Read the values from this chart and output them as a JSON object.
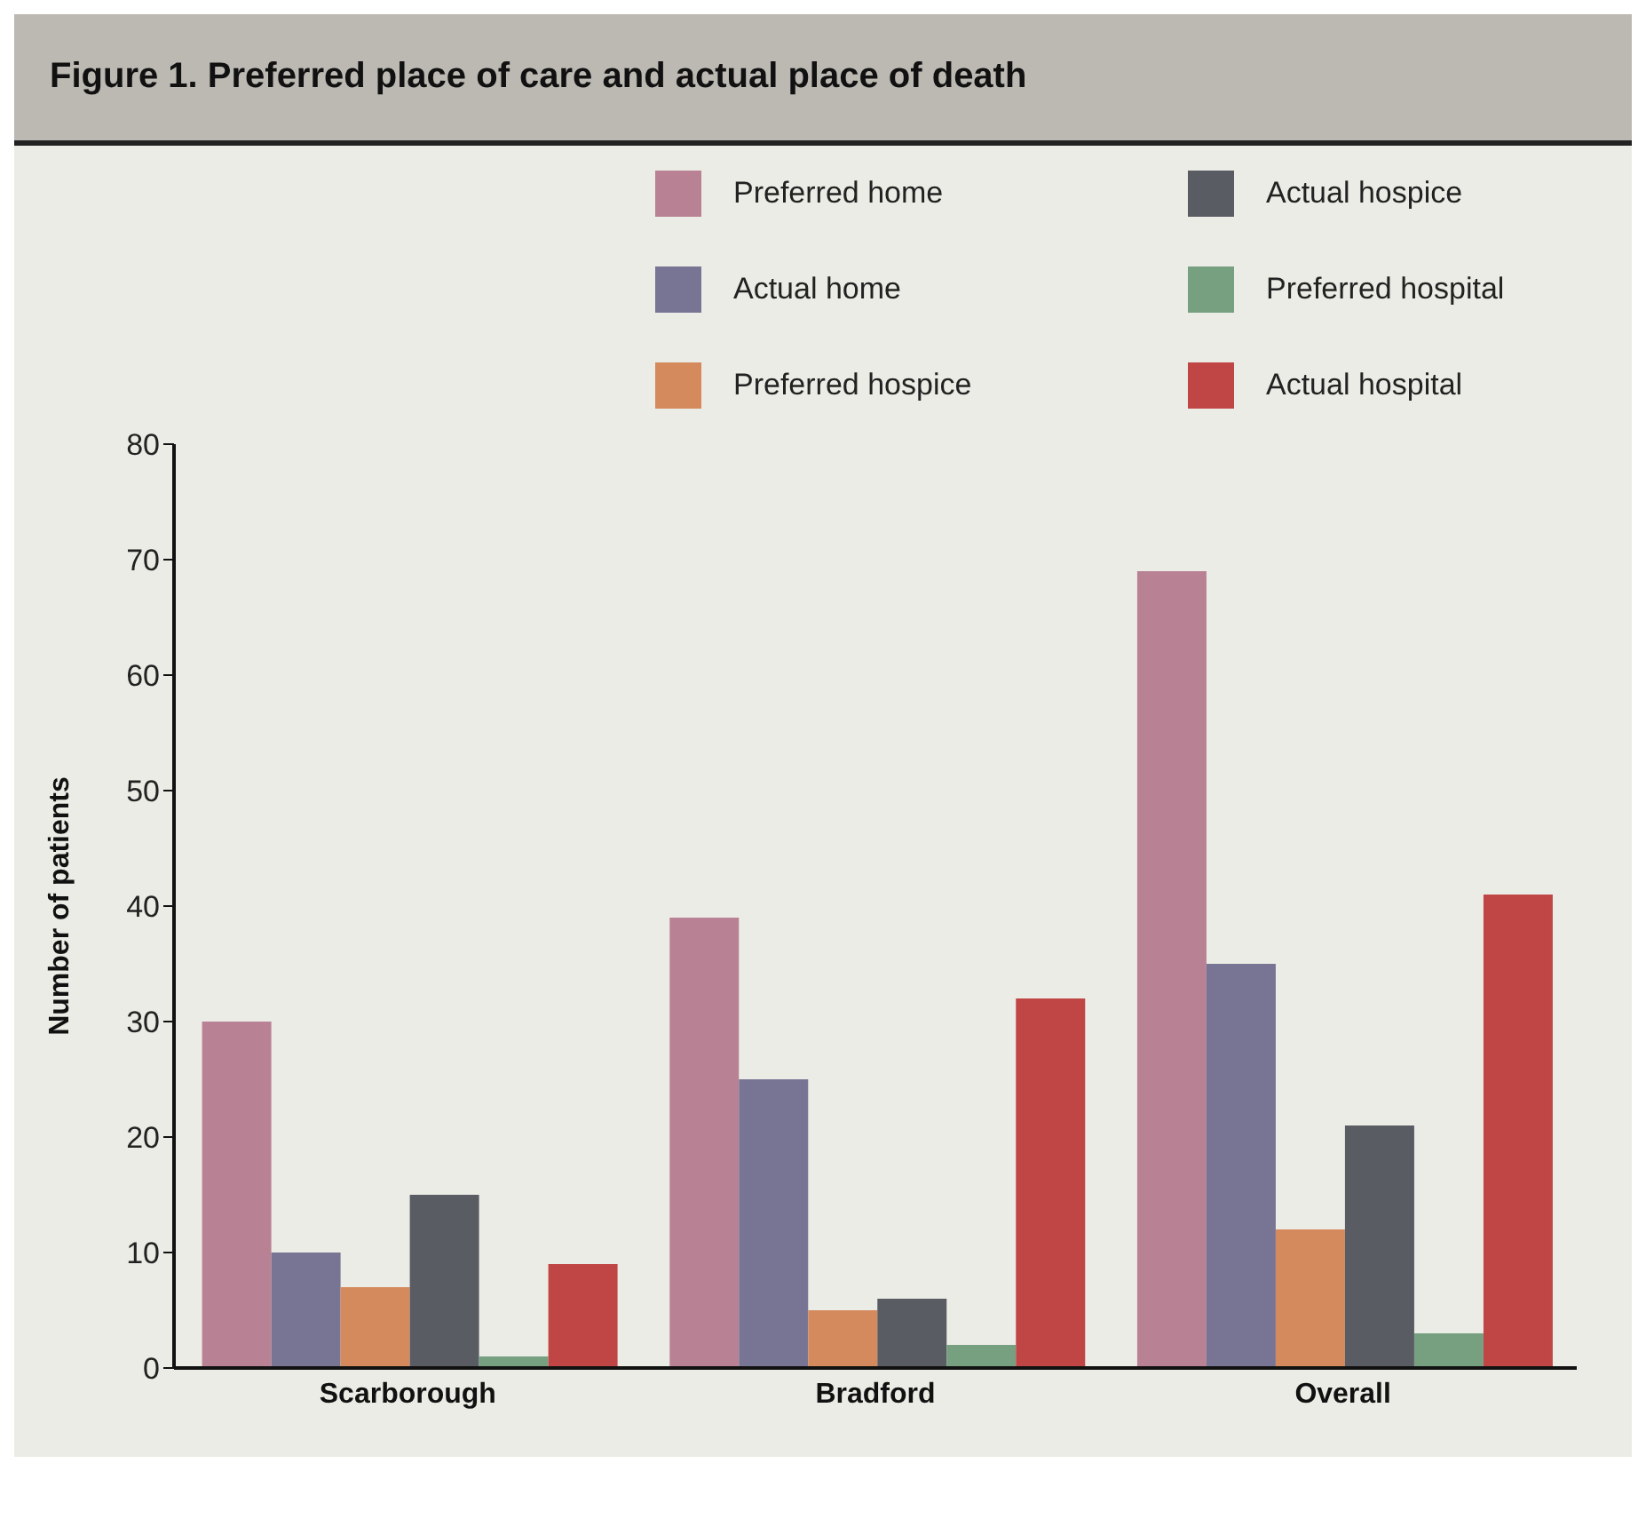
{
  "chart_data": {
    "type": "bar",
    "title": "Figure 1. Preferred place of care and actual place of death",
    "ylabel": "Number of patients",
    "categories": [
      "Scarborough",
      "Bradford",
      "Overall"
    ],
    "series": [
      {
        "name": "Preferred home",
        "color": "#b98294",
        "values": [
          30,
          39,
          69
        ]
      },
      {
        "name": "Actual home",
        "color": "#787494",
        "values": [
          10,
          25,
          35
        ]
      },
      {
        "name": "Preferred hospice",
        "color": "#d58a5e",
        "values": [
          7,
          5,
          12
        ]
      },
      {
        "name": "Actual hospice",
        "color": "#5a5c64",
        "values": [
          15,
          6,
          21
        ]
      },
      {
        "name": "Preferred hospital",
        "color": "#76a080",
        "values": [
          1,
          2,
          3
        ]
      },
      {
        "name": "Actual hospital",
        "color": "#c04646",
        "values": [
          9,
          32,
          41
        ]
      }
    ],
    "ylim": [
      0,
      80
    ],
    "yticks": [
      0,
      10,
      20,
      30,
      40,
      50,
      60,
      70,
      80
    ],
    "grid": false,
    "legend": "top right"
  }
}
